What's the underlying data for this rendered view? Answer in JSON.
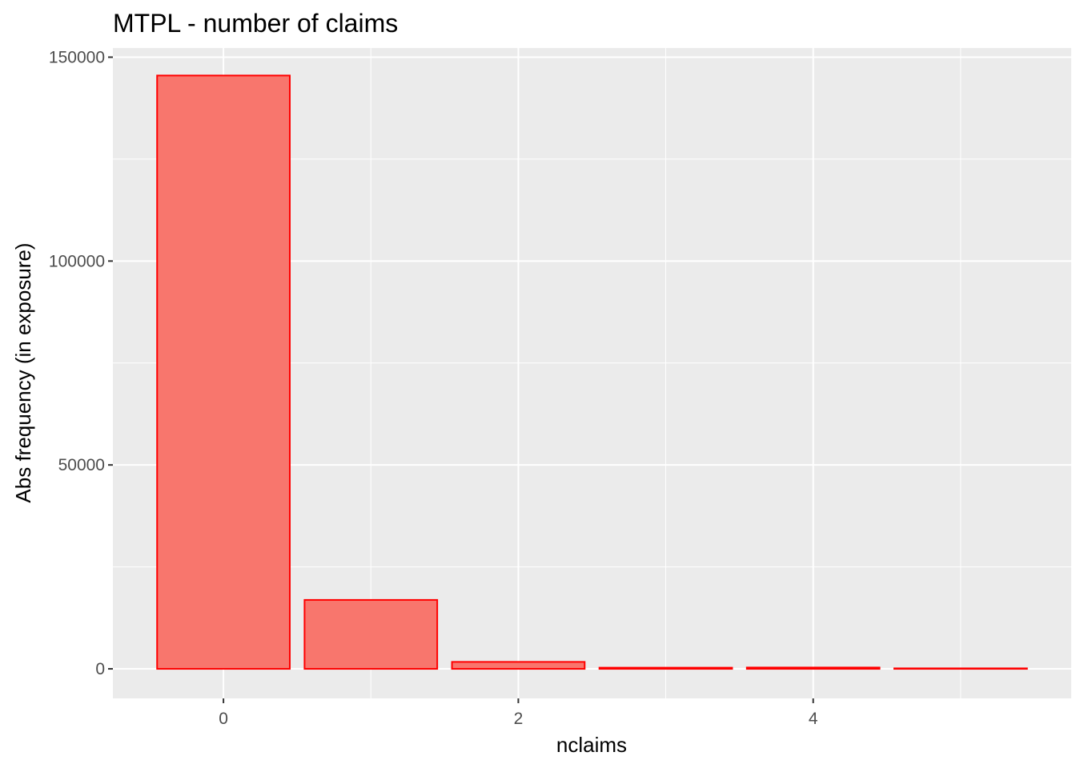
{
  "chart_data": {
    "type": "bar",
    "title": "MTPL - number of claims",
    "xlabel": "nclaims",
    "ylabel": "Abs frequency (in exposure)",
    "categories": [
      0,
      1,
      2,
      3,
      4,
      5
    ],
    "values": [
      145500,
      16900,
      1700,
      280,
      320,
      120
    ],
    "xlim": [
      -0.75,
      5.75
    ],
    "ylim": [
      -7250,
      152250
    ],
    "x_ticks": [
      0,
      2,
      4
    ],
    "y_ticks": [
      0,
      50000,
      100000,
      150000
    ],
    "x_tick_labels": [
      "0",
      "2",
      "4"
    ],
    "y_tick_labels": [
      "0",
      "50000",
      "100000",
      "150000"
    ],
    "grid": true,
    "legend": "none",
    "colors": {
      "panel_background": "#ebebeb",
      "grid": "#ffffff",
      "bar_fill": "#f8766d",
      "bar_outline": "#ff0000"
    }
  }
}
